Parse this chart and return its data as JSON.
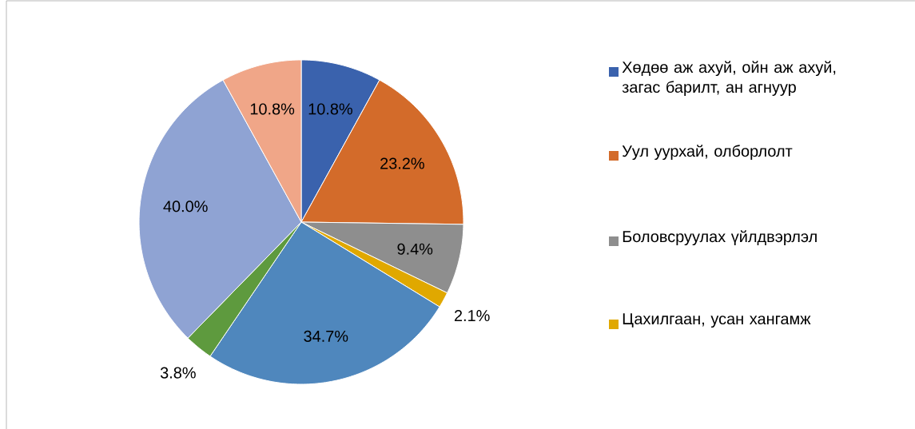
{
  "chart_data": {
    "type": "pie",
    "categories": [
      "Хөдөө аж ахуй, ойн аж ахуй, загас барилт, ан агнуур",
      "Уул уурхай, олборлолт",
      "Боловсруулах үйлдвэрлэл",
      "Цахилгаан, усан хангамж",
      null,
      null,
      null,
      null
    ],
    "values": [
      10.8,
      23.2,
      9.4,
      2.1,
      34.7,
      3.8,
      40.0,
      10.8
    ],
    "value_labels": [
      "10.8%",
      "23.2%",
      "9.4%",
      "2.1%",
      "34.7%",
      "3.8%",
      "40.0%",
      "10.8%"
    ],
    "colors": [
      "#3a62ad",
      "#d36b2a",
      "#8e8e8e",
      "#e0a800",
      "#4f87bd",
      "#5e9a3e",
      "#8fa3d3",
      "#f0a688"
    ],
    "legend": "right"
  }
}
